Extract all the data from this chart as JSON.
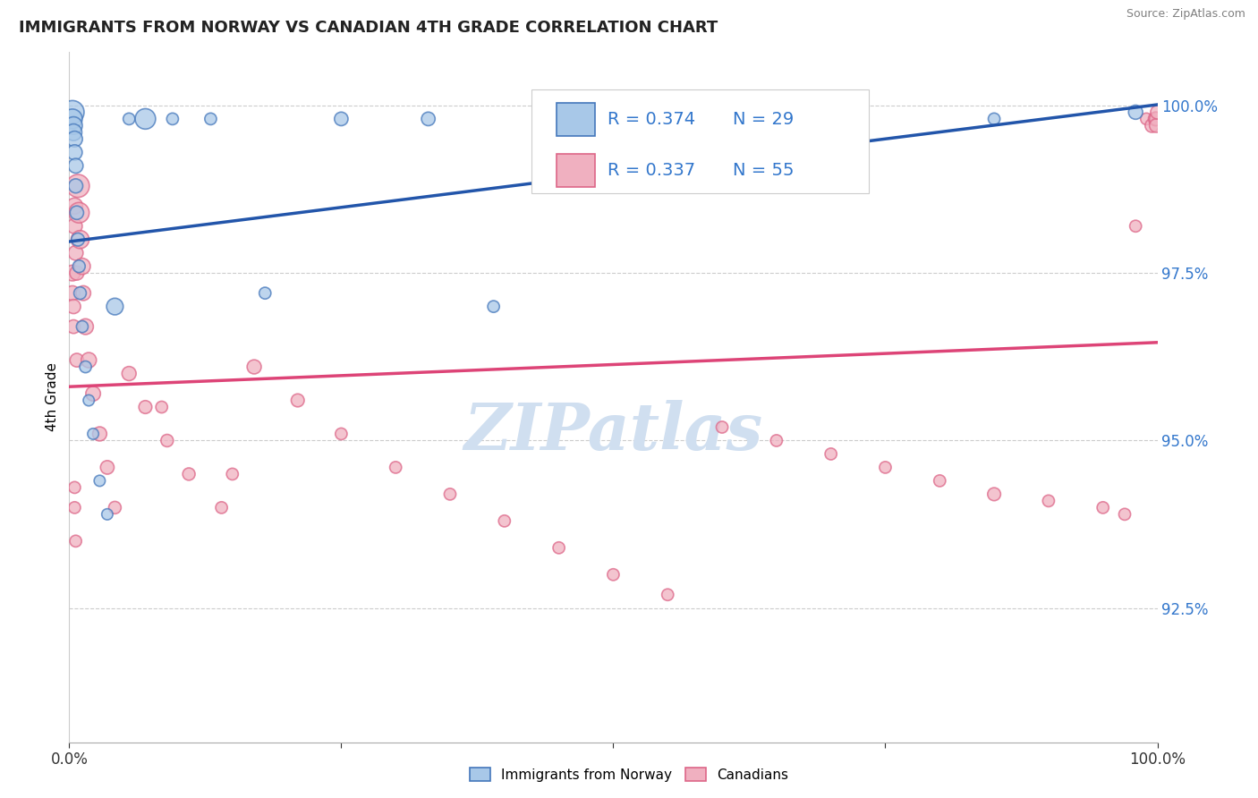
{
  "title": "IMMIGRANTS FROM NORWAY VS CANADIAN 4TH GRADE CORRELATION CHART",
  "source": "Source: ZipAtlas.com",
  "ylabel": "4th Grade",
  "xlim": [
    0.0,
    1.0
  ],
  "ylim": [
    0.905,
    1.008
  ],
  "yticks": [
    0.925,
    0.95,
    0.975,
    1.0
  ],
  "ytick_labels": [
    "92.5%",
    "95.0%",
    "97.5%",
    "100.0%"
  ],
  "blue_R": 0.374,
  "blue_N": 29,
  "pink_R": 0.337,
  "pink_N": 55,
  "blue_color": "#a8c8e8",
  "pink_color": "#f0b0c0",
  "blue_edge_color": "#4477bb",
  "pink_edge_color": "#dd6688",
  "blue_line_color": "#2255aa",
  "pink_line_color": "#dd4477",
  "legend_R_color": "#3377cc",
  "watermark_text_color": "#d0dff0",
  "blue_x": [
    0.003,
    0.003,
    0.004,
    0.004,
    0.005,
    0.005,
    0.006,
    0.006,
    0.007,
    0.008,
    0.009,
    0.01,
    0.012,
    0.015,
    0.018,
    0.022,
    0.028,
    0.035,
    0.042,
    0.055,
    0.07,
    0.095,
    0.13,
    0.18,
    0.25,
    0.33,
    0.39,
    0.85,
    0.98
  ],
  "blue_y": [
    0.999,
    0.998,
    0.997,
    0.996,
    0.995,
    0.993,
    0.991,
    0.988,
    0.984,
    0.98,
    0.976,
    0.972,
    0.967,
    0.961,
    0.956,
    0.951,
    0.944,
    0.939,
    0.97,
    0.998,
    0.998,
    0.998,
    0.998,
    0.972,
    0.998,
    0.998,
    0.97,
    0.998,
    0.999
  ],
  "blue_sizes": [
    350,
    250,
    200,
    180,
    160,
    150,
    140,
    130,
    120,
    110,
    100,
    100,
    90,
    90,
    80,
    80,
    80,
    80,
    180,
    90,
    270,
    90,
    90,
    90,
    120,
    120,
    90,
    90,
    130
  ],
  "pink_x": [
    0.003,
    0.003,
    0.004,
    0.004,
    0.005,
    0.005,
    0.006,
    0.007,
    0.007,
    0.008,
    0.009,
    0.01,
    0.012,
    0.013,
    0.015,
    0.018,
    0.022,
    0.028,
    0.035,
    0.042,
    0.055,
    0.07,
    0.09,
    0.11,
    0.14,
    0.17,
    0.21,
    0.25,
    0.3,
    0.35,
    0.4,
    0.45,
    0.5,
    0.55,
    0.6,
    0.65,
    0.7,
    0.75,
    0.8,
    0.85,
    0.9,
    0.95,
    0.97,
    0.98,
    0.99,
    0.995,
    0.998,
    0.999,
    0.999,
    1.0,
    0.085,
    0.15,
    0.005,
    0.005,
    0.006
  ],
  "pink_y": [
    0.975,
    0.972,
    0.97,
    0.967,
    0.985,
    0.982,
    0.978,
    0.975,
    0.962,
    0.988,
    0.984,
    0.98,
    0.976,
    0.972,
    0.967,
    0.962,
    0.957,
    0.951,
    0.946,
    0.94,
    0.96,
    0.955,
    0.95,
    0.945,
    0.94,
    0.961,
    0.956,
    0.951,
    0.946,
    0.942,
    0.938,
    0.934,
    0.93,
    0.927,
    0.952,
    0.95,
    0.948,
    0.946,
    0.944,
    0.942,
    0.941,
    0.94,
    0.939,
    0.982,
    0.998,
    0.997,
    0.998,
    0.998,
    0.997,
    0.999,
    0.955,
    0.945,
    0.943,
    0.94,
    0.935
  ],
  "pink_sizes": [
    160,
    140,
    130,
    120,
    170,
    150,
    140,
    130,
    120,
    340,
    270,
    210,
    170,
    140,
    160,
    150,
    140,
    130,
    120,
    100,
    130,
    110,
    100,
    100,
    90,
    130,
    110,
    90,
    90,
    90,
    90,
    90,
    90,
    90,
    90,
    90,
    90,
    90,
    90,
    110,
    90,
    90,
    90,
    90,
    90,
    120,
    120,
    120,
    120,
    120,
    90,
    90,
    90,
    90,
    90
  ]
}
